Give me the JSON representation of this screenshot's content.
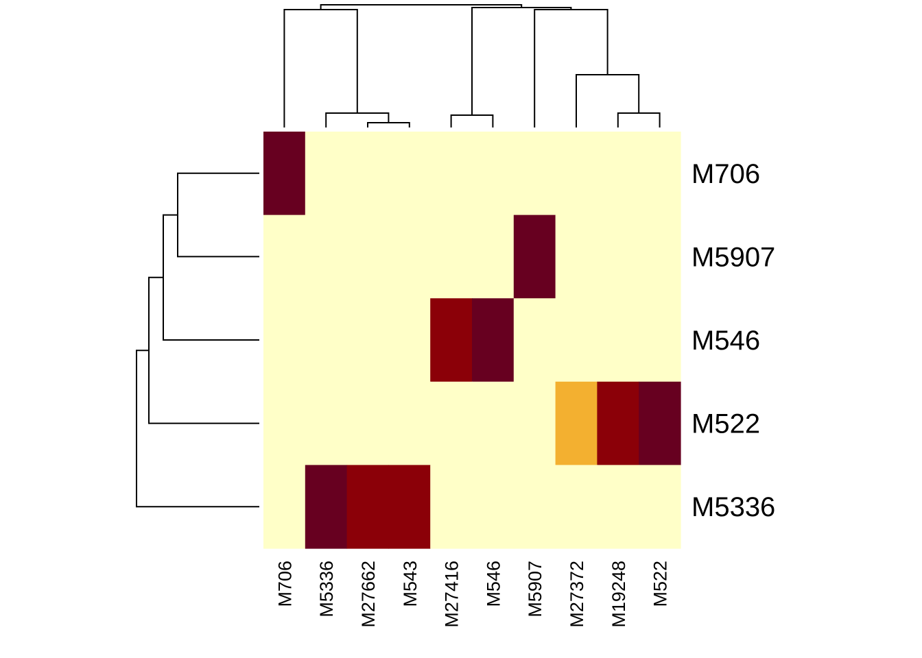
{
  "chart_data": {
    "type": "heatmap",
    "title": "",
    "xlabel": "",
    "ylabel": "",
    "rows": [
      "M706",
      "M5907",
      "M546",
      "M522",
      "M5336"
    ],
    "columns": [
      "M706",
      "M5336",
      "M27662",
      "M543",
      "M27416",
      "M546",
      "M5907",
      "M27372",
      "M19248",
      "M522"
    ],
    "values": [
      [
        4,
        0,
        0,
        0,
        0,
        0,
        0,
        0,
        0,
        0
      ],
      [
        0,
        0,
        0,
        0,
        0,
        0,
        4,
        0,
        0,
        0
      ],
      [
        0,
        0,
        0,
        0,
        3,
        4,
        0,
        0,
        0,
        0
      ],
      [
        0,
        0,
        0,
        0,
        0,
        0,
        0,
        2,
        3,
        4
      ],
      [
        0,
        4,
        3,
        3,
        0,
        0,
        0,
        0,
        0,
        0
      ]
    ],
    "color_scale": [
      "#FFFFC8",
      "#F3B030",
      "#8B0008",
      "#670020"
    ],
    "color_levels": [
      0,
      2,
      3,
      4
    ],
    "row_dendrogram": true,
    "column_dendrogram": true,
    "grid": false,
    "legend": "none"
  }
}
